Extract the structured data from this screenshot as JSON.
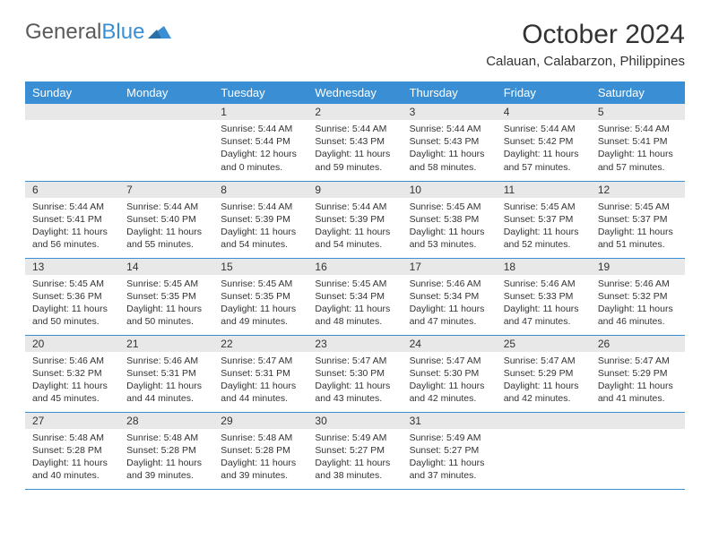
{
  "brand": {
    "part1": "General",
    "part2": "Blue"
  },
  "title": "October 2024",
  "location": "Calauan, Calabarzon, Philippines",
  "style": {
    "header_bg": "#3a8fd4",
    "header_fg": "#ffffff",
    "daynum_bg": "#e8e8e8",
    "row_border": "#3a8fd4",
    "page_bg": "#ffffff",
    "text_color": "#333333",
    "title_fontsize": 30,
    "location_fontsize": 15,
    "dayheader_fontsize": 13,
    "daynum_fontsize": 12,
    "body_fontsize": 10.5
  },
  "day_headers": [
    "Sunday",
    "Monday",
    "Tuesday",
    "Wednesday",
    "Thursday",
    "Friday",
    "Saturday"
  ],
  "weeks": [
    [
      null,
      null,
      {
        "n": "1",
        "sunrise": "5:44 AM",
        "sunset": "5:44 PM",
        "dl": "12 hours and 0 minutes."
      },
      {
        "n": "2",
        "sunrise": "5:44 AM",
        "sunset": "5:43 PM",
        "dl": "11 hours and 59 minutes."
      },
      {
        "n": "3",
        "sunrise": "5:44 AM",
        "sunset": "5:43 PM",
        "dl": "11 hours and 58 minutes."
      },
      {
        "n": "4",
        "sunrise": "5:44 AM",
        "sunset": "5:42 PM",
        "dl": "11 hours and 57 minutes."
      },
      {
        "n": "5",
        "sunrise": "5:44 AM",
        "sunset": "5:41 PM",
        "dl": "11 hours and 57 minutes."
      }
    ],
    [
      {
        "n": "6",
        "sunrise": "5:44 AM",
        "sunset": "5:41 PM",
        "dl": "11 hours and 56 minutes."
      },
      {
        "n": "7",
        "sunrise": "5:44 AM",
        "sunset": "5:40 PM",
        "dl": "11 hours and 55 minutes."
      },
      {
        "n": "8",
        "sunrise": "5:44 AM",
        "sunset": "5:39 PM",
        "dl": "11 hours and 54 minutes."
      },
      {
        "n": "9",
        "sunrise": "5:44 AM",
        "sunset": "5:39 PM",
        "dl": "11 hours and 54 minutes."
      },
      {
        "n": "10",
        "sunrise": "5:45 AM",
        "sunset": "5:38 PM",
        "dl": "11 hours and 53 minutes."
      },
      {
        "n": "11",
        "sunrise": "5:45 AM",
        "sunset": "5:37 PM",
        "dl": "11 hours and 52 minutes."
      },
      {
        "n": "12",
        "sunrise": "5:45 AM",
        "sunset": "5:37 PM",
        "dl": "11 hours and 51 minutes."
      }
    ],
    [
      {
        "n": "13",
        "sunrise": "5:45 AM",
        "sunset": "5:36 PM",
        "dl": "11 hours and 50 minutes."
      },
      {
        "n": "14",
        "sunrise": "5:45 AM",
        "sunset": "5:35 PM",
        "dl": "11 hours and 50 minutes."
      },
      {
        "n": "15",
        "sunrise": "5:45 AM",
        "sunset": "5:35 PM",
        "dl": "11 hours and 49 minutes."
      },
      {
        "n": "16",
        "sunrise": "5:45 AM",
        "sunset": "5:34 PM",
        "dl": "11 hours and 48 minutes."
      },
      {
        "n": "17",
        "sunrise": "5:46 AM",
        "sunset": "5:34 PM",
        "dl": "11 hours and 47 minutes."
      },
      {
        "n": "18",
        "sunrise": "5:46 AM",
        "sunset": "5:33 PM",
        "dl": "11 hours and 47 minutes."
      },
      {
        "n": "19",
        "sunrise": "5:46 AM",
        "sunset": "5:32 PM",
        "dl": "11 hours and 46 minutes."
      }
    ],
    [
      {
        "n": "20",
        "sunrise": "5:46 AM",
        "sunset": "5:32 PM",
        "dl": "11 hours and 45 minutes."
      },
      {
        "n": "21",
        "sunrise": "5:46 AM",
        "sunset": "5:31 PM",
        "dl": "11 hours and 44 minutes."
      },
      {
        "n": "22",
        "sunrise": "5:47 AM",
        "sunset": "5:31 PM",
        "dl": "11 hours and 44 minutes."
      },
      {
        "n": "23",
        "sunrise": "5:47 AM",
        "sunset": "5:30 PM",
        "dl": "11 hours and 43 minutes."
      },
      {
        "n": "24",
        "sunrise": "5:47 AM",
        "sunset": "5:30 PM",
        "dl": "11 hours and 42 minutes."
      },
      {
        "n": "25",
        "sunrise": "5:47 AM",
        "sunset": "5:29 PM",
        "dl": "11 hours and 42 minutes."
      },
      {
        "n": "26",
        "sunrise": "5:47 AM",
        "sunset": "5:29 PM",
        "dl": "11 hours and 41 minutes."
      }
    ],
    [
      {
        "n": "27",
        "sunrise": "5:48 AM",
        "sunset": "5:28 PM",
        "dl": "11 hours and 40 minutes."
      },
      {
        "n": "28",
        "sunrise": "5:48 AM",
        "sunset": "5:28 PM",
        "dl": "11 hours and 39 minutes."
      },
      {
        "n": "29",
        "sunrise": "5:48 AM",
        "sunset": "5:28 PM",
        "dl": "11 hours and 39 minutes."
      },
      {
        "n": "30",
        "sunrise": "5:49 AM",
        "sunset": "5:27 PM",
        "dl": "11 hours and 38 minutes."
      },
      {
        "n": "31",
        "sunrise": "5:49 AM",
        "sunset": "5:27 PM",
        "dl": "11 hours and 37 minutes."
      },
      null,
      null
    ]
  ],
  "labels": {
    "sunrise": "Sunrise:",
    "sunset": "Sunset:",
    "daylight": "Daylight:"
  }
}
